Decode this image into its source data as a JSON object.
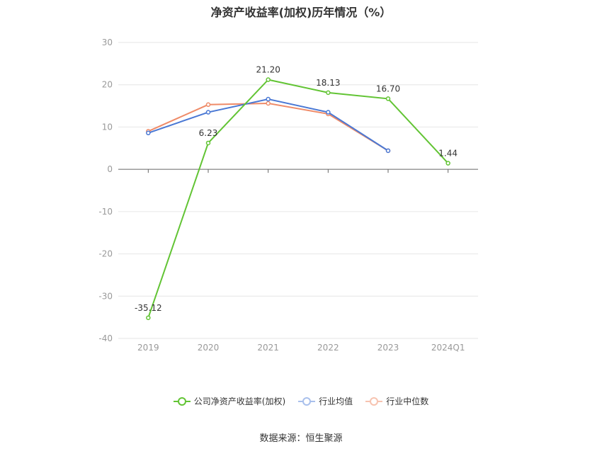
{
  "chart_data": {
    "type": "line",
    "title": "净资产收益率(加权)历年情况（%）",
    "categories": [
      "2019",
      "2020",
      "2021",
      "2022",
      "2023",
      "2024Q1"
    ],
    "ylim": [
      -40,
      30
    ],
    "yticks": [
      30,
      20,
      10,
      0,
      -10,
      -20,
      -30,
      -40
    ],
    "grid": true,
    "legend_position": "bottom",
    "series": [
      {
        "name": "公司净资产收益率(加权)",
        "color": "#62c434",
        "values": [
          -35.12,
          6.23,
          21.2,
          18.13,
          16.7,
          1.44
        ],
        "labels": [
          "-35.12",
          "6.23",
          "21.20",
          "18.13",
          "16.70",
          "1.44"
        ]
      },
      {
        "name": "行业均值",
        "color": "#4a78d4",
        "values": [
          8.6,
          13.5,
          16.6,
          13.5,
          4.4,
          null
        ]
      },
      {
        "name": "行业中位数",
        "color": "#ef8b68",
        "values": [
          9.0,
          15.3,
          15.6,
          13.1,
          4.4,
          null
        ]
      }
    ]
  },
  "source": "数据来源：恒生聚源"
}
